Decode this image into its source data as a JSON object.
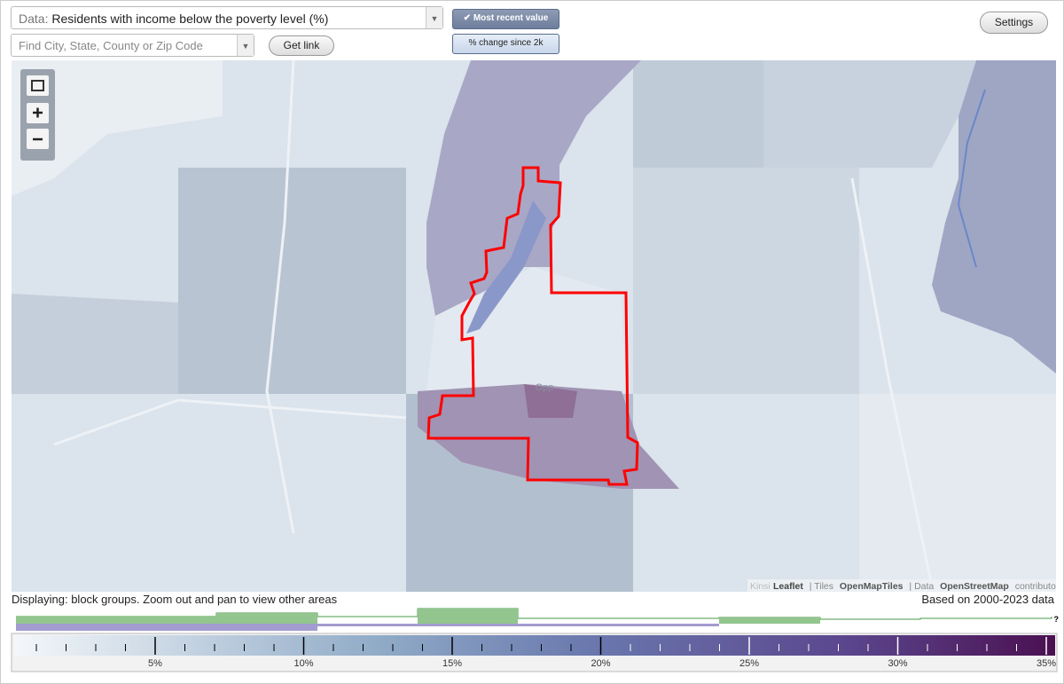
{
  "header": {
    "data_label": "Data:",
    "data_value": "Residents with income below the poverty level (%)",
    "search_placeholder": "Find City, State, County or Zip Code",
    "get_link": "Get link",
    "most_recent": "Most recent value",
    "change_since": "% change since 2k",
    "settings": "Settings"
  },
  "map": {
    "place_label": "Opp",
    "attribution": {
      "cut": "Kinsi",
      "leaflet": "Leaflet",
      "tiles": "| Tiles",
      "tiles_src": "OpenMapTiles",
      "data": "| Data",
      "data_src": "OpenStreetMap",
      "contributors": "contributors"
    }
  },
  "footer": {
    "displaying": "Displaying: block groups. Zoom out and pan to view other areas",
    "based_on": "Based on 2000-2023 data",
    "help": "?"
  },
  "legend": {
    "labels": [
      "5%",
      "10%",
      "15%",
      "20%",
      "25%",
      "30%",
      "35%"
    ]
  }
}
